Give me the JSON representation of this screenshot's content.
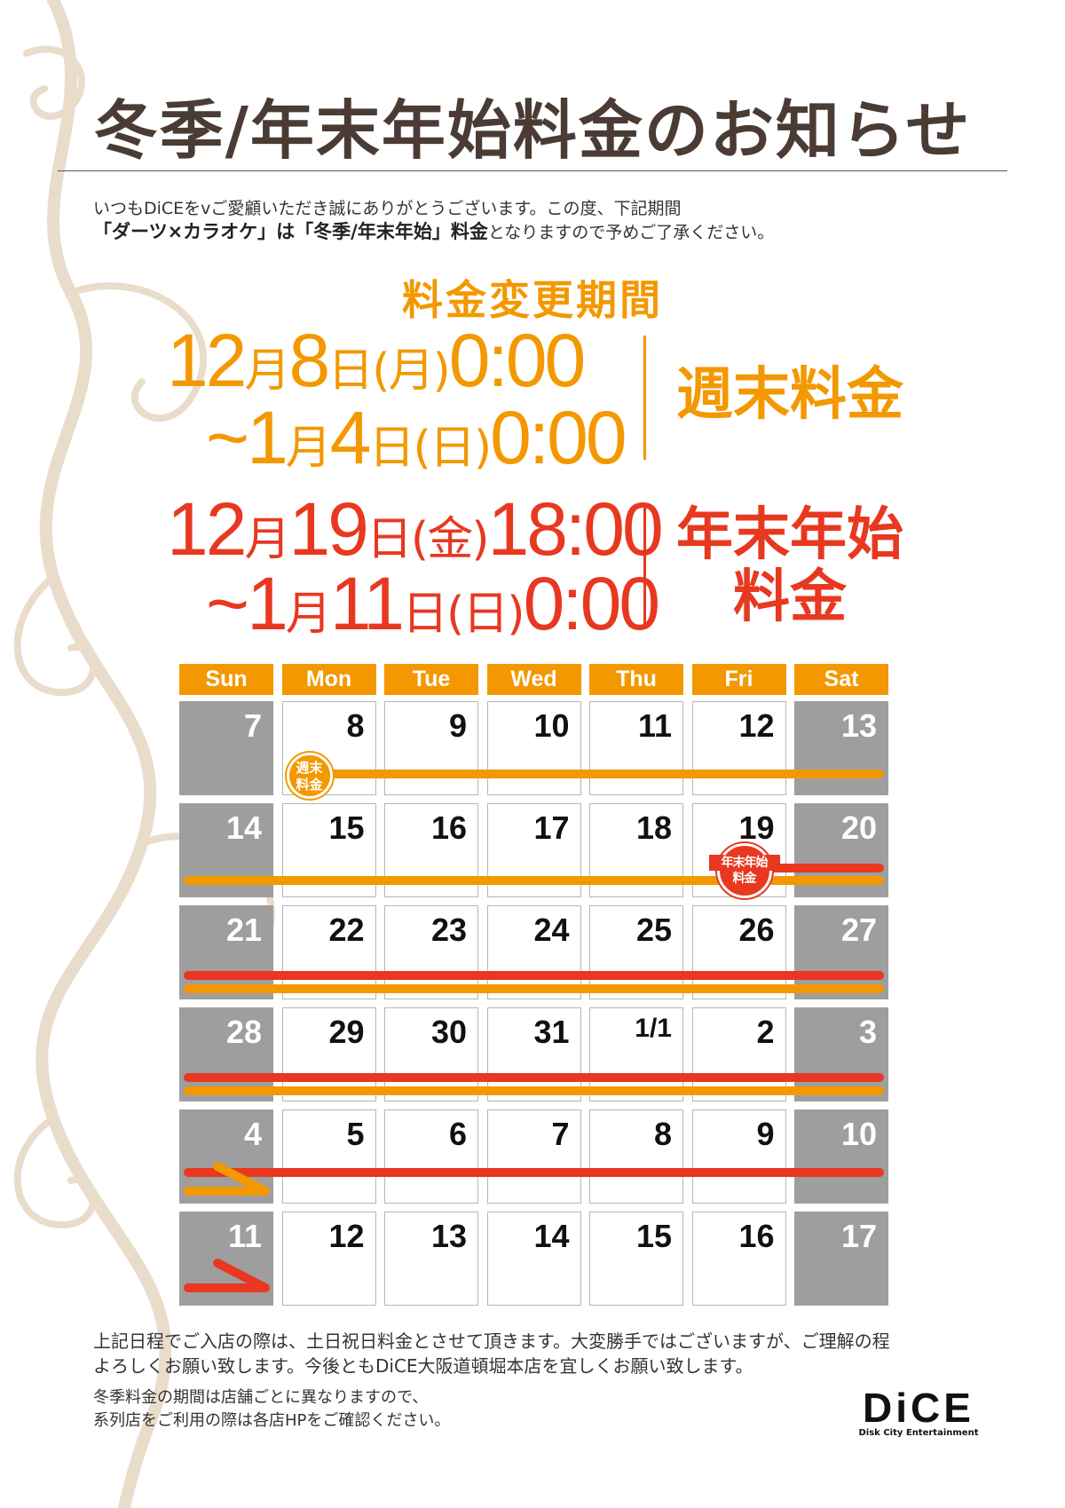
{
  "title": "冬季/年末年始料金のお知らせ",
  "intro": {
    "line1": "いつもDiCEをvご愛顧いただき誠にありがとうございます。この度、下記期間",
    "line2_bold": "「ダーツ×カラオケ」は「冬季/年末年始」料金",
    "line2_rest": "となりますので予めご了承ください。"
  },
  "period_heading": "料金変更期間",
  "periods": [
    {
      "from": [
        "12",
        "月",
        "8",
        "日",
        "(月)",
        "0:00"
      ],
      "to": [
        "~",
        "1",
        "月",
        "4",
        "日",
        "(日)",
        "0:00"
      ],
      "label": "週末料金",
      "color": "#f39800"
    },
    {
      "from": [
        "12",
        "月",
        "19",
        "日",
        "(金)",
        "18:00"
      ],
      "to": [
        "~",
        "1",
        "月",
        "11",
        "日",
        "(日)",
        "0:00"
      ],
      "label1": "年末年始",
      "label2": "料金",
      "color": "#e83820"
    }
  ],
  "calendar": {
    "days": [
      "Sun",
      "Mon",
      "Tue",
      "Wed",
      "Thu",
      "Fri",
      "Sat"
    ],
    "weeks": [
      [
        "7",
        "8",
        "9",
        "10",
        "11",
        "12",
        "13"
      ],
      [
        "14",
        "15",
        "16",
        "17",
        "18",
        "19",
        "20"
      ],
      [
        "21",
        "22",
        "23",
        "24",
        "25",
        "26",
        "27"
      ],
      [
        "28",
        "29",
        "30",
        "31",
        "1/1",
        "2",
        "3"
      ],
      [
        "4",
        "5",
        "6",
        "7",
        "8",
        "9",
        "10"
      ],
      [
        "11",
        "12",
        "13",
        "14",
        "15",
        "16",
        "17"
      ]
    ],
    "badge_weekend": {
      "l1": "週末",
      "l2": "料金"
    },
    "badge_newyear": {
      "l1": "年末年始",
      "l2": "料金"
    }
  },
  "footer": {
    "line1": "上記日程でご入店の際は、土日祝日料金とさせて頂きます。大変勝手ではございますが、ご理解の程",
    "line2": "よろしくお願い致します。今後ともDiCE大阪道頓堀本店を宜しくお願い致します。",
    "note1": "冬季料金の期間は店舗ごとに異なりますので、",
    "note2": "系列店をご利用の際は各店HPをご確認ください。"
  },
  "logo": {
    "mark": "DiCE",
    "tagline": "Disk City Entertainment"
  },
  "colors": {
    "orange": "#f39800",
    "red": "#e83820",
    "weekend_gray": "#9e9e9e",
    "title_brown": "#4a3c34"
  }
}
